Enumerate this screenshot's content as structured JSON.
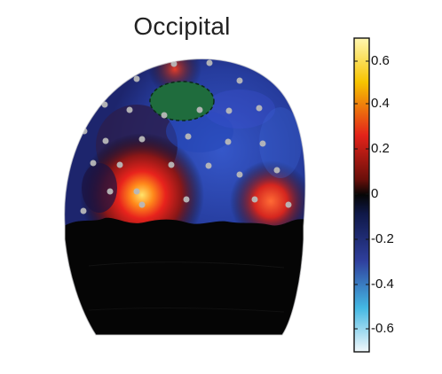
{
  "figure": {
    "title": "Occipital",
    "view": "occipital-head-topography",
    "colorbar": {
      "ticks": [
        "0.6",
        "0.4",
        "0.2",
        "0",
        "-0.2",
        "-0.4",
        "-0.6"
      ],
      "range": [
        -0.7,
        0.7
      ],
      "colors": {
        "max": "#fff7b0",
        "high": "#f7c400",
        "mid_high": "#e3231a",
        "zero": "#060606",
        "mid_low": "#2f3f9d",
        "low": "#44b8e3",
        "min": "#f2f8fb"
      }
    },
    "regions": {
      "head_surface": "blue topographic scalp map",
      "highlight_patch": "green electrode region",
      "neck_mask": "black occluded neck area"
    }
  }
}
